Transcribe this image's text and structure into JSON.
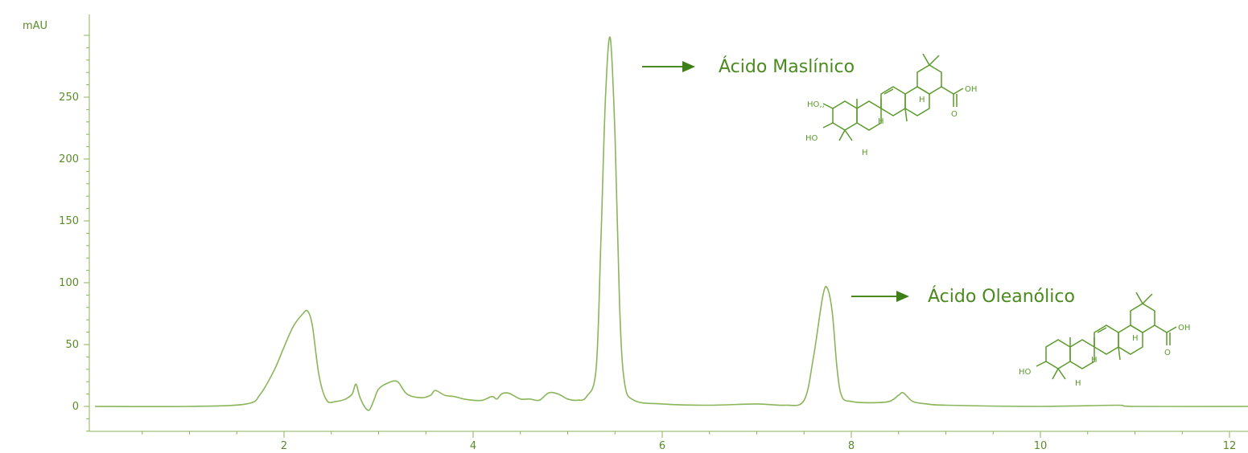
{
  "chart_data": {
    "type": "line",
    "title": "",
    "xlabel": "",
    "ylabel": "mAU",
    "xlim": [
      0,
      12.2
    ],
    "ylim": [
      -20,
      310
    ],
    "x_ticks": [
      2,
      4,
      6,
      8,
      10,
      12
    ],
    "y_ticks": [
      0,
      50,
      100,
      150,
      200,
      250
    ],
    "grid": false,
    "line_color": "#8ab55a",
    "series": [
      {
        "x": [
          0.0,
          1.0,
          1.6,
          1.75,
          1.9,
          2.0,
          2.1,
          2.2,
          2.25,
          2.3,
          2.37,
          2.45,
          2.55,
          2.65,
          2.72,
          2.76,
          2.8,
          2.85,
          2.9,
          2.95,
          3.0,
          3.1,
          3.2,
          3.3,
          3.45,
          3.55,
          3.6,
          3.7,
          3.8,
          3.9,
          4.0,
          4.1,
          4.2,
          4.25,
          4.3,
          4.35,
          4.4,
          4.5,
          4.6,
          4.7,
          4.8,
          4.9,
          5.0,
          5.1,
          5.2,
          5.3,
          5.35,
          5.4,
          5.45,
          5.5,
          5.55,
          5.6,
          5.7,
          6.0,
          6.5,
          7.0,
          7.3,
          7.5,
          7.6,
          7.7,
          7.75,
          7.8,
          7.85,
          7.9,
          8.0,
          8.2,
          8.4,
          8.5,
          8.55,
          8.65,
          8.8,
          9.0,
          10.0,
          10.8,
          11.0,
          12.2
        ],
        "y": [
          0,
          0,
          2,
          10,
          30,
          48,
          65,
          75,
          77,
          65,
          25,
          5,
          4,
          6,
          10,
          18,
          8,
          0,
          -3,
          5,
          14,
          19,
          20,
          10,
          7,
          9,
          13,
          9,
          8,
          6,
          5,
          5,
          8,
          6,
          10,
          11,
          10,
          6,
          6,
          5,
          11,
          10,
          6,
          5,
          8,
          30,
          130,
          250,
          298,
          220,
          80,
          20,
          5,
          2,
          1,
          2,
          1,
          5,
          40,
          90,
          95,
          75,
          30,
          8,
          4,
          3,
          4,
          9,
          11,
          4,
          2,
          1,
          0,
          1,
          0,
          0
        ]
      }
    ],
    "annotations": [
      {
        "text": "Ácido Maslínico",
        "x": 5.45,
        "y": 298
      },
      {
        "text": "Ácido Oleanólico",
        "x": 7.75,
        "y": 95
      }
    ]
  },
  "molecules": {
    "maslinic": {
      "labels": {
        "ho_alpha": "HO,,",
        "ho_beta": "HO",
        "oh": "OH",
        "o": "O",
        "h": "H"
      }
    },
    "oleanolic": {
      "labels": {
        "ho_beta": "HO",
        "oh": "OH",
        "o": "O",
        "h": "H"
      }
    }
  }
}
